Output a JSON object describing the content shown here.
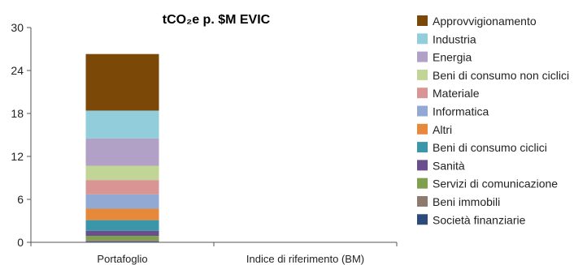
{
  "chart_data": {
    "type": "bar",
    "stacked": true,
    "title": "tCO₂e p. $M EVIC",
    "xlabel": "",
    "ylabel": "",
    "ylim": [
      0,
      30
    ],
    "yticks": [
      0,
      6,
      12,
      18,
      24,
      30
    ],
    "categories": [
      "Portafoglio",
      "Indice di riferimento (BM)"
    ],
    "legend_position": "right",
    "grid": false,
    "series": [
      {
        "name": "Società finanziarie",
        "color": "#2d4b7a",
        "values": [
          0.1,
          0
        ]
      },
      {
        "name": "Beni immobili",
        "color": "#8c7b6e",
        "values": [
          0.2,
          0
        ]
      },
      {
        "name": "Servizi di comunicazione",
        "color": "#7fa04e",
        "values": [
          0.6,
          0
        ]
      },
      {
        "name": "Sanità",
        "color": "#6a4f8c",
        "values": [
          0.7,
          0
        ]
      },
      {
        "name": "Beni di consumo ciclici",
        "color": "#3a96a8",
        "values": [
          1.5,
          0
        ]
      },
      {
        "name": "Altri",
        "color": "#e7893a",
        "values": [
          1.6,
          0
        ]
      },
      {
        "name": "Informatica",
        "color": "#92a9d3",
        "values": [
          2.0,
          0
        ]
      },
      {
        "name": "Materiale",
        "color": "#d99594",
        "values": [
          2.0,
          0
        ]
      },
      {
        "name": "Beni di consumo non ciclici",
        "color": "#c1d597",
        "values": [
          2.0,
          0
        ]
      },
      {
        "name": "Energia",
        "color": "#b2a1c7",
        "values": [
          3.8,
          0
        ]
      },
      {
        "name": "Industria",
        "color": "#92cddc",
        "values": [
          3.9,
          0
        ]
      },
      {
        "name": "Approvvigionamento",
        "color": "#7b4808",
        "values": [
          7.9,
          0
        ]
      }
    ],
    "legend_order": [
      "Approvvigionamento",
      "Industria",
      "Energia",
      "Beni di consumo non ciclici",
      "Materiale",
      "Informatica",
      "Altri",
      "Beni di consumo ciclici",
      "Sanità",
      "Servizi di comunicazione",
      "Beni immobili",
      "Società finanziarie"
    ]
  }
}
